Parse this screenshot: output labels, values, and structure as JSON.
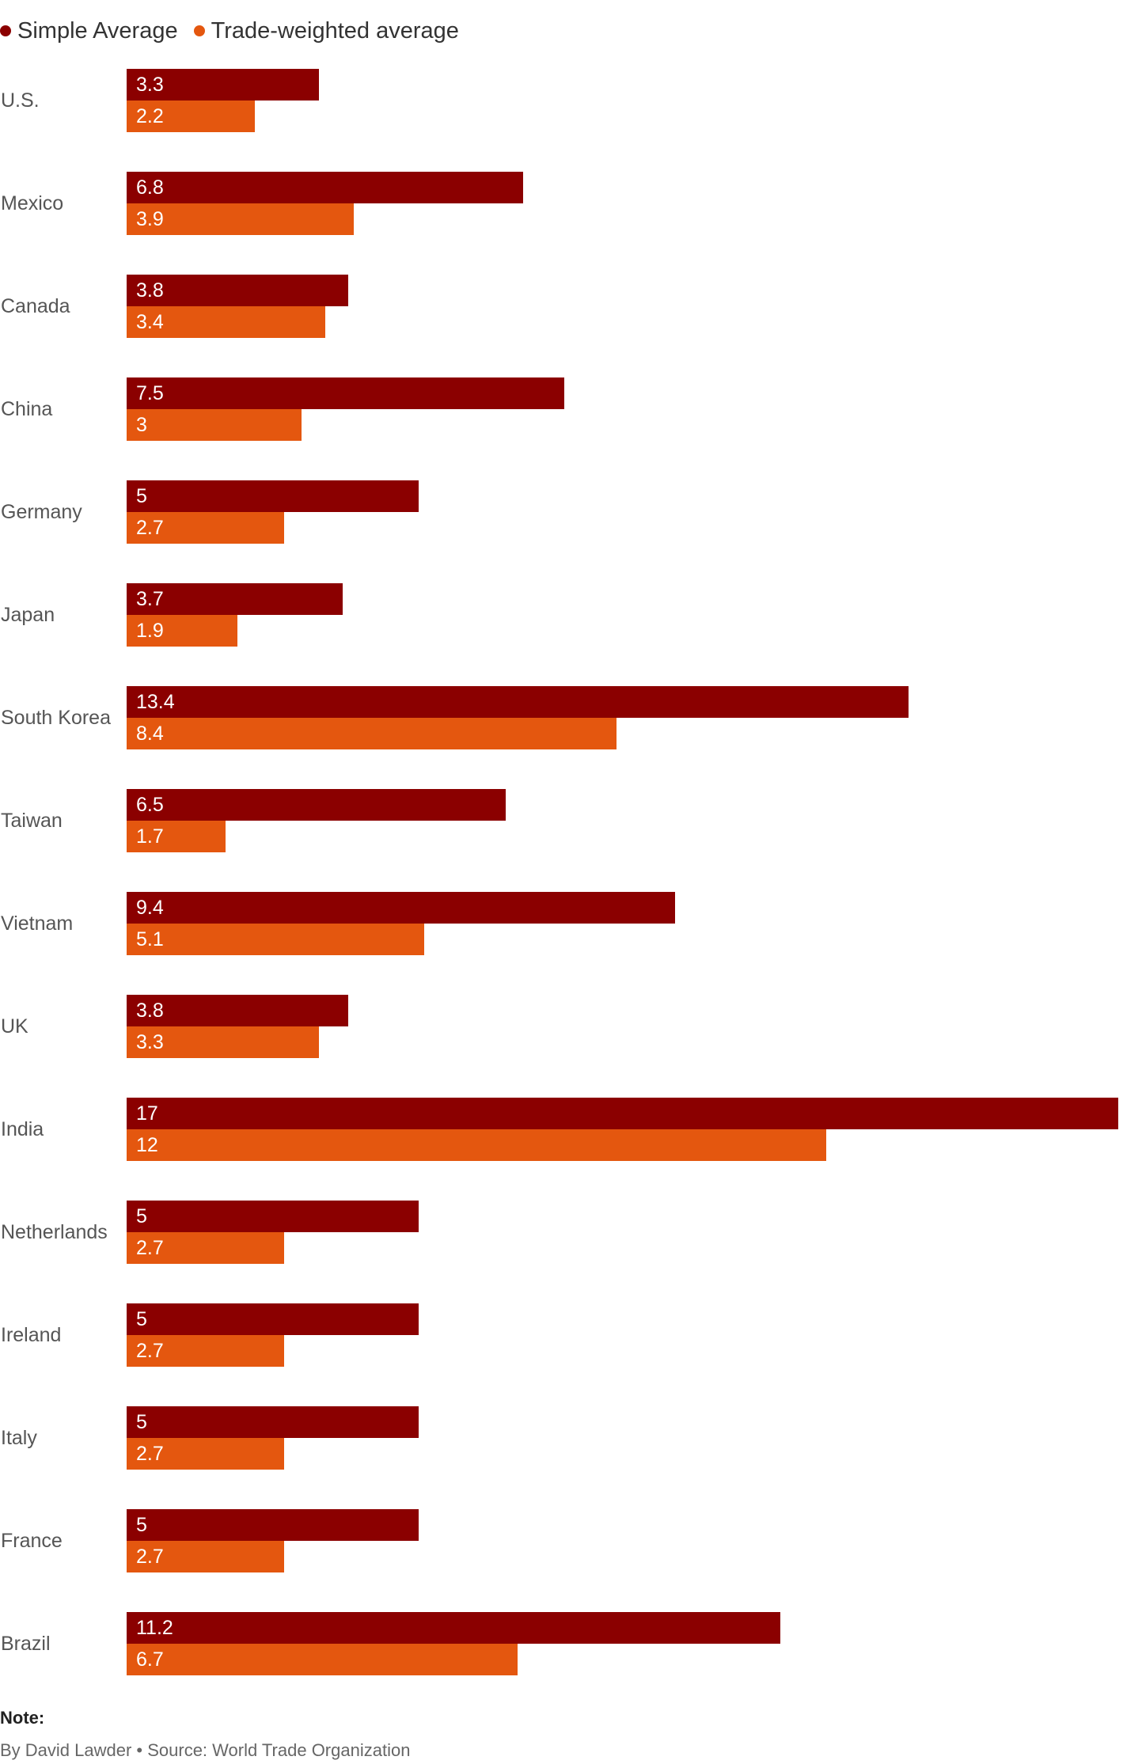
{
  "chart_data": {
    "type": "bar",
    "orientation": "horizontal",
    "categories": [
      "U.S.",
      "Mexico",
      "Canada",
      "China",
      "Germany",
      "Japan",
      "South Korea",
      "Taiwan",
      "Vietnam",
      "UK",
      "India",
      "Netherlands",
      "Ireland",
      "Italy",
      "France",
      "Brazil"
    ],
    "series": [
      {
        "name": "Simple Average",
        "color": "#8b0000",
        "values": [
          3.3,
          6.8,
          3.8,
          7.5,
          5,
          3.7,
          13.4,
          6.5,
          9.4,
          3.8,
          17,
          5,
          5,
          5,
          5,
          11.2
        ]
      },
      {
        "name": "Trade-weighted average",
        "color": "#e4570f",
        "values": [
          2.2,
          3.9,
          3.4,
          3,
          2.7,
          1.9,
          8.4,
          1.7,
          5.1,
          3.3,
          12,
          2.7,
          2.7,
          2.7,
          2.7,
          6.7
        ]
      }
    ],
    "data_labels": true,
    "xlim": [
      0,
      17
    ],
    "grid": false,
    "legend_position": "top-left"
  },
  "footer": {
    "note": "Note:",
    "byline": "By David Lawder • Source: World Trade Organization"
  }
}
